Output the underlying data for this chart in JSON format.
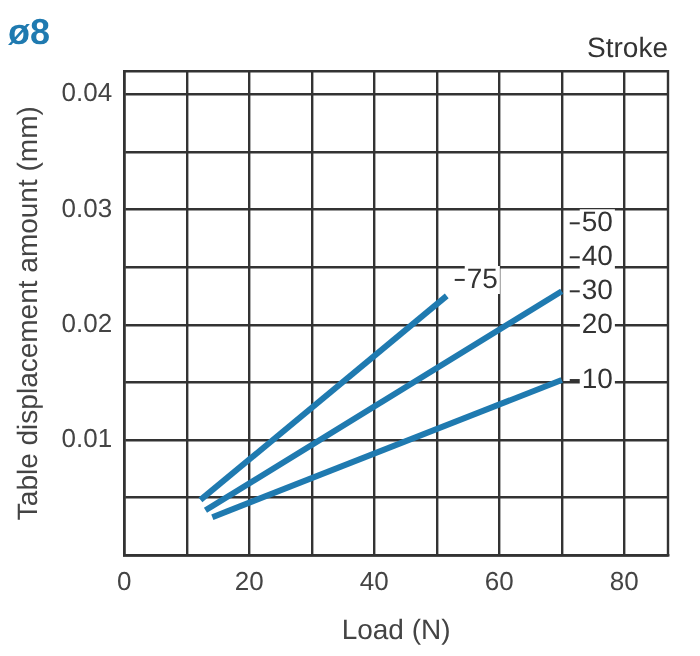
{
  "chart_data": {
    "type": "line",
    "title": "ø8",
    "xlabel": "Load (N)",
    "ylabel": "Table displacement amount (mm)",
    "legend_title": "Stroke",
    "xlim": [
      0,
      87
    ],
    "ylim": [
      0,
      0.042
    ],
    "xticks": [
      0,
      {
        "value": 10,
        "label": null
      },
      20,
      {
        "value": 30,
        "label": null
      },
      40,
      {
        "value": 50,
        "label": null
      },
      60,
      {
        "value": 70,
        "label": null
      },
      80
    ],
    "yticks": [
      {
        "value": 0,
        "label": null
      },
      {
        "value": 0.005,
        "label": null
      },
      0.01,
      {
        "value": 0.015,
        "label": null
      },
      0.02,
      {
        "value": 0.025,
        "label": null
      },
      0.03,
      {
        "value": 0.035,
        "label": null
      },
      0.04
    ],
    "grid": true,
    "legend": false,
    "marker": "none",
    "line_style": "solid",
    "series": [
      {
        "name": "75",
        "color": "#1f7ab0",
        "x": [
          12.2,
          51.6
        ],
        "values": [
          0.0048,
          0.0225
        ]
      },
      {
        "color": "#1f7ab0",
        "x": [
          13,
          70
        ],
        "values": [
          0.0039,
          0.0229
        ]
      },
      {
        "name": "10",
        "color": "#1f7ab0",
        "x": [
          14.1,
          70
        ],
        "values": [
          0.0033,
          0.0152
        ]
      }
    ],
    "annotations": [
      "50",
      "40",
      "30",
      "20"
    ]
  }
}
